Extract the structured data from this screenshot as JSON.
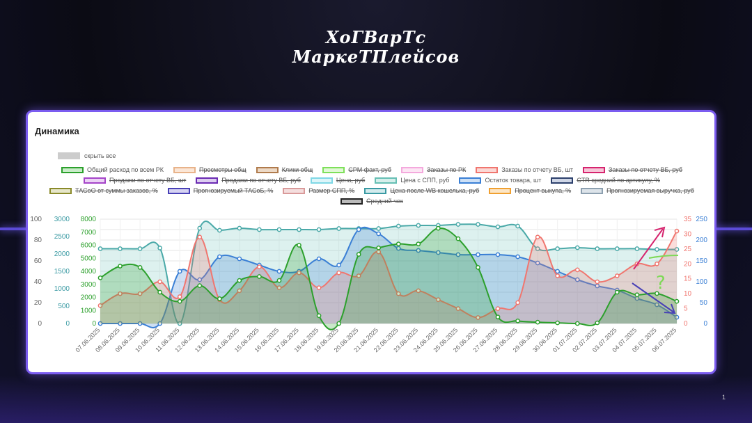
{
  "logo": {
    "line1": "ХоГВарТс",
    "line2": "МаркеТПлейсов"
  },
  "card": {
    "title": "Динамика",
    "hide_all": "скрыть все"
  },
  "legend": [
    {
      "label": "Общий расход по всем РК",
      "color": "#2ca02c",
      "fill": "#c9ecc9",
      "hidden": false
    },
    {
      "label": "Просмотры общ",
      "color": "#e8b38a",
      "fill": "#fbe6d6",
      "hidden": true
    },
    {
      "label": "Клики общ",
      "color": "#b07b4c",
      "fill": "#ecd9c6",
      "hidden": true
    },
    {
      "label": "CPM факт, руб",
      "color": "#7ee05a",
      "fill": "#e1f8d6",
      "hidden": true
    },
    {
      "label": "Заказы по РК",
      "color": "#f4a9dd",
      "fill": "#fce6f4",
      "hidden": true
    },
    {
      "label": "Заказы по отчету ВБ, шт",
      "color": "#f0766f",
      "fill": "#fbd8d5",
      "hidden": false
    },
    {
      "label": "Заказы по отчету ВБ, руб",
      "color": "#d6246e",
      "fill": "#f6c6d8",
      "hidden": true
    },
    {
      "label": "Продажи по отчету ВБ, шт",
      "color": "#a544c9",
      "fill": "#ecd3f5",
      "hidden": true
    },
    {
      "label": "Продажи по отчету ВБ, руб",
      "color": "#6a2ab3",
      "fill": "#dccdf0",
      "hidden": true
    },
    {
      "label": "Цена, руб",
      "color": "#7fd8e6",
      "fill": "#dcf5f9",
      "hidden": true
    },
    {
      "label": "Цена с СПП, руб",
      "color": "#66bfb4",
      "fill": "#d5efeb",
      "hidden": false
    },
    {
      "label": "Остаток товара, шт",
      "color": "#3a7fd5",
      "fill": "#cde0f6",
      "hidden": false
    },
    {
      "label": "CTR средний по артикулу, %",
      "color": "#2b3f6b",
      "fill": "#cfd6e6",
      "hidden": true
    },
    {
      "label": "ТАСоО от суммы заказов, %",
      "color": "#8a8a2a",
      "fill": "#e6e6c9",
      "hidden": true
    },
    {
      "label": "Прогнозируемый ТАСоБ, %",
      "color": "#4840b6",
      "fill": "#d6d3f2",
      "hidden": true
    },
    {
      "label": "Размер СПП, %",
      "color": "#d99a9a",
      "fill": "#f4dede",
      "hidden": true
    },
    {
      "label": "Цена после WB кошелька, руб",
      "color": "#3a9aa3",
      "fill": "#d3ebed",
      "hidden": true
    },
    {
      "label": "Процент выкупа, %",
      "color": "#f0a030",
      "fill": "#fce6c6",
      "hidden": true
    },
    {
      "label": "Прогнозируемая выручка, руб",
      "color": "#8da0b0",
      "fill": "#dde4ea",
      "hidden": true
    },
    {
      "label": "Средний чек",
      "color": "#222222",
      "fill": "#bbbbbb",
      "hidden": true
    }
  ],
  "annotation": "?",
  "page_number": "1",
  "chart_data": {
    "type": "area",
    "categories": [
      "07.06.2025",
      "08.06.2025",
      "09.06.2025",
      "10.06.2025",
      "11.06.2025",
      "12.06.2025",
      "13.06.2025",
      "14.06.2025",
      "15.06.2025",
      "16.06.2025",
      "17.06.2025",
      "18.06.2025",
      "19.06.2025",
      "20.06.2025",
      "21.06.2025",
      "22.06.2025",
      "23.06.2025",
      "24.06.2025",
      "25.06.2025",
      "26.06.2025",
      "27.06.2025",
      "28.06.2025",
      "29.06.2025",
      "30.06.2025",
      "01.07.2025",
      "02.07.2025",
      "03.07.2025",
      "04.07.2025",
      "05.07.2025",
      "06.07.2025"
    ],
    "axes": [
      {
        "id": "a1",
        "side": "left",
        "min": 0,
        "max": 100,
        "ticks": [
          0,
          20,
          40,
          60,
          80,
          100
        ],
        "color": "#666666"
      },
      {
        "id": "a2",
        "side": "left",
        "min": 0,
        "max": 3000,
        "ticks": [
          0,
          500,
          1000,
          1500,
          2000,
          2500,
          3000
        ],
        "color": "#3a9aa3"
      },
      {
        "id": "a3",
        "side": "left",
        "min": 0,
        "max": 8000,
        "ticks": [
          0,
          1000,
          2000,
          3000,
          4000,
          5000,
          6000,
          7000,
          8000
        ],
        "color": "#2ca02c"
      },
      {
        "id": "a4",
        "side": "right",
        "min": 0,
        "max": 35,
        "ticks": [
          0,
          5,
          10,
          15,
          20,
          25,
          30,
          35
        ],
        "color": "#f0766f"
      },
      {
        "id": "a5",
        "side": "right",
        "min": 0,
        "max": 250,
        "ticks": [
          0,
          50,
          100,
          150,
          200,
          250
        ],
        "color": "#3a7fd5"
      }
    ],
    "series": [
      {
        "name": "Цена с СПП, руб",
        "axis": "a2",
        "color": "#4aa9a8",
        "fill": "rgba(102,191,180,0.22)",
        "values": [
          2150,
          2150,
          2150,
          2170,
          0,
          2740,
          2680,
          2740,
          2700,
          2700,
          2700,
          2700,
          2730,
          2730,
          2730,
          2800,
          2820,
          2820,
          2850,
          2850,
          2780,
          2800,
          2150,
          2150,
          2180,
          2150,
          2150,
          2150,
          2130,
          2130
        ]
      },
      {
        "name": "Остаток товара, шт",
        "axis": "a5",
        "color": "#3a7fd5",
        "fill": "rgba(58,127,213,0.25)",
        "values": [
          0,
          0,
          0,
          0,
          125,
          105,
          160,
          155,
          140,
          125,
          125,
          155,
          140,
          225,
          215,
          180,
          175,
          170,
          165,
          165,
          165,
          160,
          145,
          125,
          105,
          90,
          80,
          60,
          45,
          15
        ]
      },
      {
        "name": "Заказы по отчету ВБ, шт",
        "axis": "a4",
        "color": "#f0766f",
        "fill": "rgba(240,118,111,0.25)",
        "values": [
          6,
          10,
          10,
          14,
          9,
          29,
          8,
          11,
          19,
          12,
          17,
          12,
          17,
          16,
          24,
          10,
          11,
          8,
          5,
          2,
          5,
          7,
          29,
          16,
          18,
          14,
          16,
          20,
          20,
          31
        ]
      },
      {
        "name": "Общий расход по всем РК",
        "axis": "a3",
        "color": "#2ca02c",
        "fill": "rgba(44,160,44,0.25)",
        "values": [
          3500,
          4400,
          4300,
          2400,
          1700,
          2900,
          1900,
          3300,
          3600,
          3300,
          6000,
          600,
          0,
          5300,
          5800,
          6100,
          6100,
          7300,
          6500,
          4300,
          500,
          200,
          100,
          50,
          0,
          50,
          2400,
          2200,
          2300,
          1700
        ]
      }
    ]
  }
}
